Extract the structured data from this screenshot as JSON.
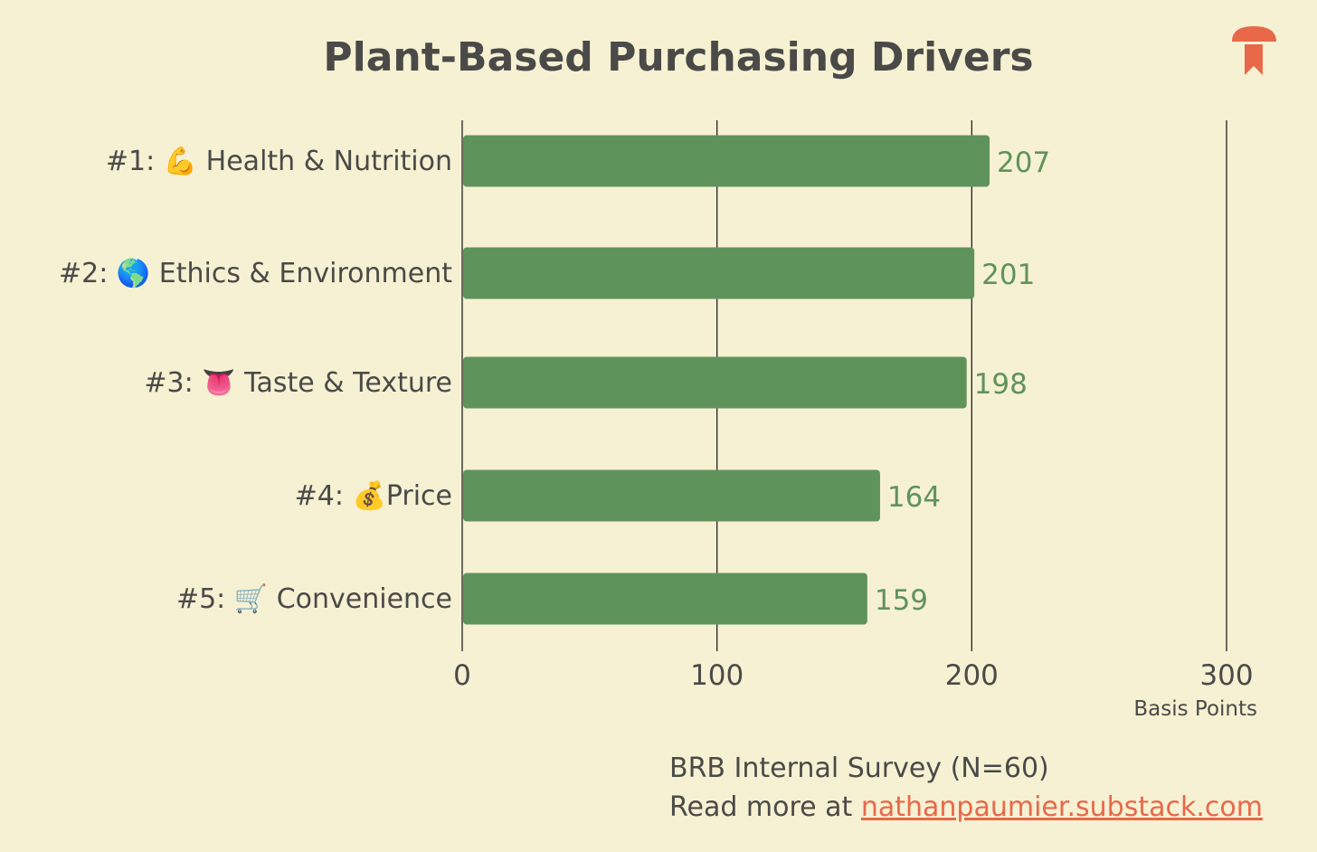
{
  "colors": {
    "background": "#f7f1d3",
    "bar": "#5f935c",
    "value_text": "#5f935c",
    "text": "#4a4a48",
    "link": "#e8684a",
    "logo": "#e8684a"
  },
  "logo": {
    "icon": "mushroom-bookmark-icon"
  },
  "source": {
    "line1": "BRB Internal Survey (N=60)",
    "line2_prefix": "Read more at ",
    "link_text": "nathanpaumier.substack.com"
  },
  "chart_data": {
    "type": "bar",
    "orientation": "horizontal",
    "title": "Plant-Based Purchasing Drivers",
    "xlabel": "Basis Points",
    "ylabel": "",
    "categories": [
      "#1: 💪 Health & Nutrition",
      "#2: 🌎 Ethics & Environment",
      "#3: 👅 Taste & Texture",
      "#4: 💰Price",
      "#5: 🛒 Convenience"
    ],
    "values": [
      207,
      201,
      198,
      164,
      159
    ],
    "data_labels": [
      "207",
      "201",
      "198",
      "164",
      "159"
    ],
    "xlim": [
      0,
      300
    ],
    "xticks": [
      0,
      100,
      200,
      300
    ],
    "xtick_labels": [
      "0",
      "100",
      "200",
      "300"
    ],
    "grid": "vertical",
    "legend": "none"
  }
}
